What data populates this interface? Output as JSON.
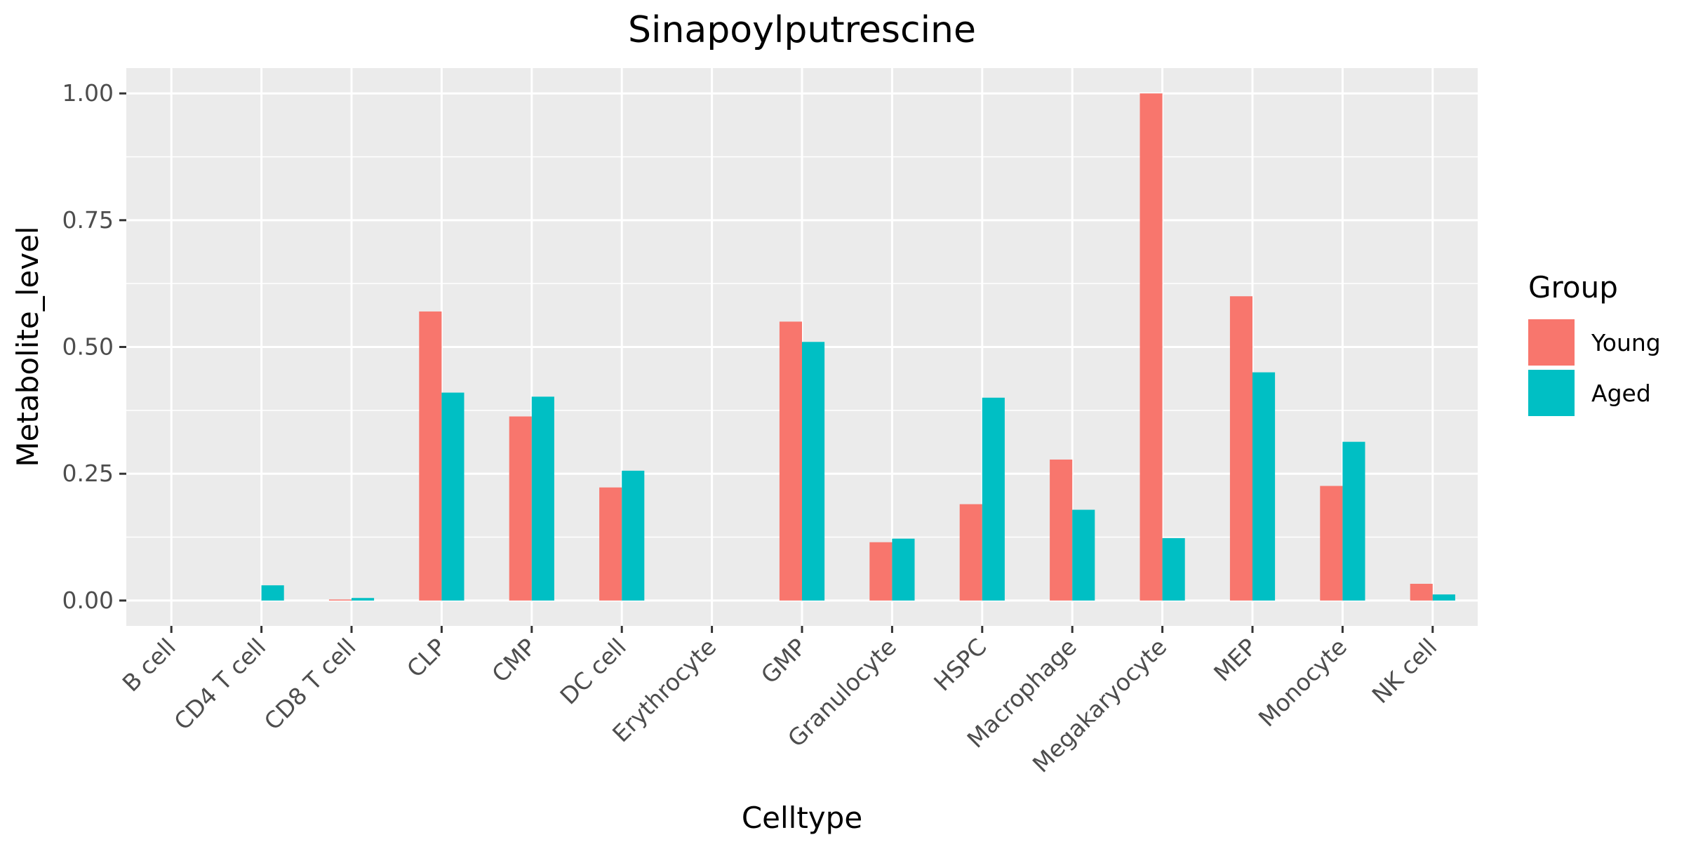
{
  "chart_data": {
    "type": "bar",
    "title": "Sinapoylputrescine",
    "xlabel": "Celltype",
    "ylabel": "Metabolite_level",
    "categories": [
      "B cell",
      "CD4 T cell",
      "CD8 T cell",
      "CLP",
      "CMP",
      "DC cell",
      "Erythrocyte",
      "GMP",
      "Granulocyte",
      "HSPC",
      "Macrophage",
      "Megakaryocyte",
      "MEP",
      "Monocyte",
      "NK cell"
    ],
    "series": [
      {
        "name": "Young",
        "color": "#F8766D",
        "values": [
          0.0,
          0.0,
          0.002,
          0.57,
          0.363,
          0.223,
          0.0,
          0.55,
          0.115,
          0.19,
          0.278,
          1.0,
          0.6,
          0.226,
          0.033
        ]
      },
      {
        "name": "Aged",
        "color": "#00BFC4",
        "values": [
          0.0,
          0.03,
          0.005,
          0.41,
          0.402,
          0.256,
          0.0,
          0.51,
          0.122,
          0.4,
          0.179,
          0.123,
          0.45,
          0.313,
          0.012
        ]
      }
    ],
    "ylim": [
      -0.05,
      1.05
    ],
    "yticks": [
      0.0,
      0.25,
      0.5,
      0.75,
      1.0
    ],
    "ytick_labels": [
      "0.00",
      "0.25",
      "0.50",
      "0.75",
      "1.00"
    ],
    "legend": {
      "title": "Group",
      "position": "right"
    },
    "grid": true,
    "panel_background": "#EBEBEB"
  }
}
